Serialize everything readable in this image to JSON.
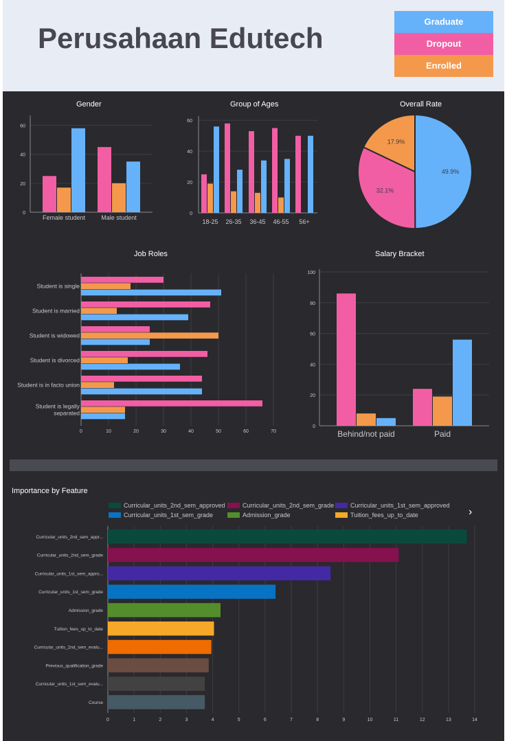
{
  "header": {
    "title": "Perusahaan Edutech"
  },
  "status_legend": [
    {
      "label": "Graduate",
      "color": "#66b2fa"
    },
    {
      "label": "Dropout",
      "color": "#f25ea4"
    },
    {
      "label": "Enrolled",
      "color": "#f4994b"
    }
  ],
  "colors": {
    "graduate": "#66b2fa",
    "dropout": "#f25ea4",
    "enrolled": "#f4994b"
  },
  "chart_data": [
    {
      "id": "gender",
      "type": "bar",
      "title": "Gender",
      "categories": [
        "Female student",
        "Male student"
      ],
      "series": [
        {
          "name": "Dropout",
          "values": [
            25,
            45
          ]
        },
        {
          "name": "Enrolled",
          "values": [
            17,
            20
          ]
        },
        {
          "name": "Graduate",
          "values": [
            58,
            35
          ]
        }
      ],
      "yticks": [
        "0",
        "20",
        "40",
        "60"
      ],
      "ylim": [
        0,
        65
      ]
    },
    {
      "id": "ages",
      "type": "bar",
      "title": "Group of Ages",
      "categories": [
        "18-25",
        "26-35",
        "36-45",
        "46-55",
        "56+"
      ],
      "series": [
        {
          "name": "Dropout",
          "values": [
            25,
            58,
            53,
            55,
            50
          ]
        },
        {
          "name": "Enrolled",
          "values": [
            19,
            14,
            13,
            10,
            0
          ]
        },
        {
          "name": "Graduate",
          "values": [
            56,
            28,
            34,
            35,
            50
          ]
        }
      ],
      "yticks": [
        "0",
        "20",
        "40",
        "60"
      ],
      "ylim": [
        0,
        61
      ]
    },
    {
      "id": "overall",
      "type": "pie",
      "title": "Overall Rate",
      "slices": [
        {
          "name": "Graduate",
          "value": 49.9,
          "label": "49.9%"
        },
        {
          "name": "Dropout",
          "value": 32.1,
          "label": "32.1%"
        },
        {
          "name": "Enrolled",
          "value": 17.9,
          "label": "17.9%"
        }
      ]
    },
    {
      "id": "jobroles",
      "type": "bar",
      "orientation": "horizontal",
      "title": "Job Roles",
      "categories": [
        "Student is single",
        "Student is married",
        "Student is widowed",
        "Student is divorced",
        "Student is in facto union",
        "Student is legally separated"
      ],
      "category_lines": [
        [
          "Student is single"
        ],
        [
          "Student is married"
        ],
        [
          "Student is widowed"
        ],
        [
          "Student is divorced"
        ],
        [
          "Student is in facto union"
        ],
        [
          "Student is legally",
          "separated"
        ]
      ],
      "series": [
        {
          "name": "Dropout",
          "values": [
            30,
            47,
            25,
            46,
            44,
            66
          ]
        },
        {
          "name": "Enrolled",
          "values": [
            18,
            13,
            50,
            17,
            12,
            16
          ]
        },
        {
          "name": "Graduate",
          "values": [
            51,
            39,
            25,
            36,
            44,
            16
          ]
        }
      ],
      "xticks": [
        "0",
        "10",
        "20",
        "30",
        "40",
        "50",
        "60",
        "70"
      ],
      "xlim": [
        0,
        71
      ]
    },
    {
      "id": "salary",
      "type": "bar",
      "title": "Salary Bracket",
      "categories": [
        "Behind/not paid",
        "Paid"
      ],
      "series": [
        {
          "name": "Dropout",
          "values": [
            86,
            24
          ]
        },
        {
          "name": "Enrolled",
          "values": [
            8,
            19
          ]
        },
        {
          "name": "Graduate",
          "values": [
            5,
            56
          ]
        }
      ],
      "yticks": [
        "0",
        "20",
        "40",
        "60",
        "80",
        "100"
      ],
      "ylim": [
        0,
        100
      ]
    },
    {
      "id": "importance",
      "type": "bar",
      "orientation": "horizontal",
      "title": "Importance by Feature",
      "legend": [
        {
          "label": "Curricular_units_2nd_sem_approved",
          "color": "#0a4a3c"
        },
        {
          "label": "Curricular_units_2nd_sem_grade",
          "color": "#86114f"
        },
        {
          "label": "Curricular_units_1st_sem_approved",
          "color": "#4429a4"
        },
        {
          "label": "Curricular_units_1st_sem_grade",
          "color": "#0873c3"
        },
        {
          "label": "Admission_grade",
          "color": "#548e2c"
        },
        {
          "label": "Tuition_fees_up_to_date",
          "color": "#f6a828"
        }
      ],
      "legend_more": "›",
      "categories": [
        "Curricular_units_2nd_sem_appr...",
        "Curricular_units_2nd_sem_grade",
        "Curricular_units_1st_sem_appro...",
        "Curricular_units_1st_sem_grade",
        "Admission_grade",
        "Tuition_fees_up_to_date",
        "Curricular_units_2nd_sem_evalu...",
        "Previous_qualification_grade",
        "Curricular_units_1st_sem_evalu...",
        "Course"
      ],
      "values": [
        13.7,
        11.1,
        8.5,
        6.4,
        4.3,
        4.05,
        3.95,
        3.85,
        3.7,
        3.7
      ],
      "colors": [
        "#0a4a3c",
        "#86114f",
        "#4429a4",
        "#0873c3",
        "#548e2c",
        "#f6a828",
        "#ef6c00",
        "#6b4c41",
        "#424242",
        "#455a64"
      ],
      "xticks": [
        "0",
        "1",
        "2",
        "3",
        "4",
        "5",
        "6",
        "7",
        "8",
        "9",
        "10",
        "11",
        "12",
        "13",
        "14"
      ],
      "xlim": [
        0,
        14
      ]
    }
  ]
}
